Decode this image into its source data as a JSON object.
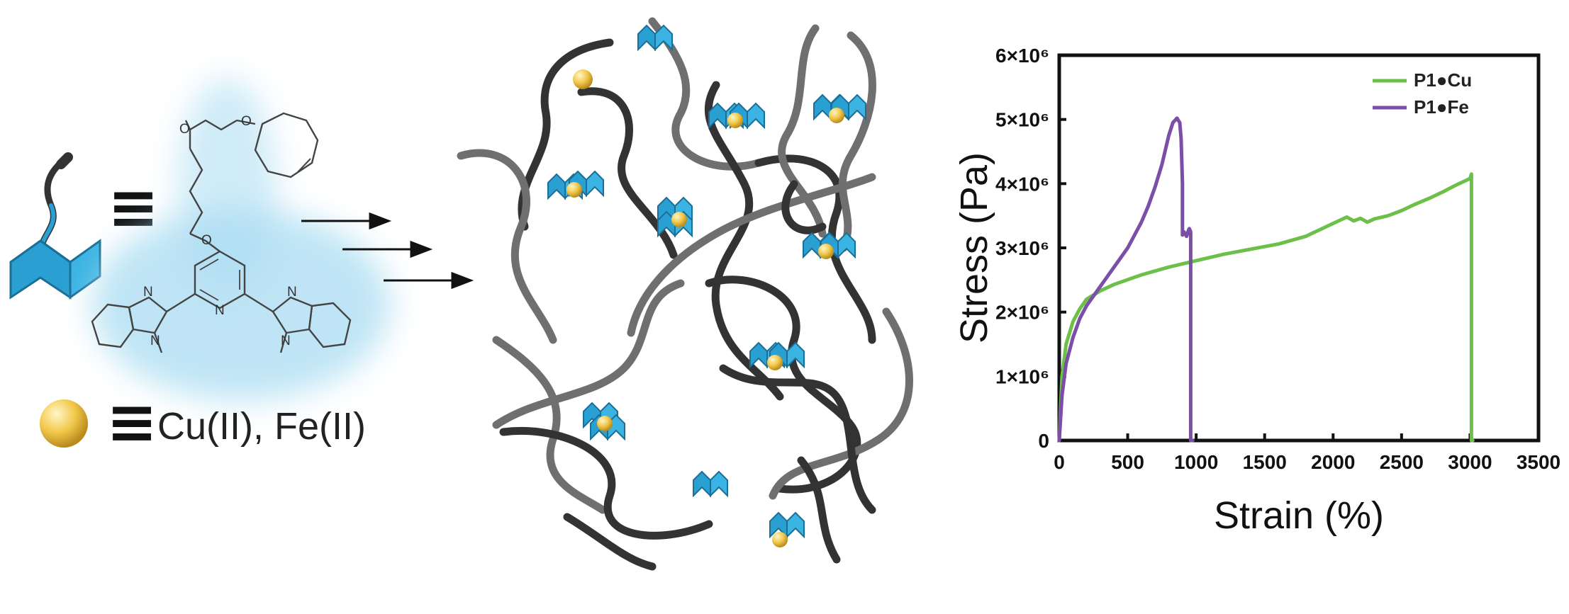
{
  "legend": {
    "equiv_symbol": "≡",
    "metal_ions": "Cu(II), Fe(II)"
  },
  "colors": {
    "ligand_blue": "#2a9fd1",
    "ligand_glow": "#a9dcf2",
    "metal_gold": "#f2c84b",
    "chain_dark": "#333333",
    "chain_light": "#7a7a7a",
    "cu_series": "#6cc04a",
    "fe_series": "#7b4fa8"
  },
  "molecule": {
    "atoms": [
      "O",
      "O",
      "O",
      "N",
      "N",
      "N",
      "N",
      "N"
    ]
  },
  "chart_data": {
    "type": "line",
    "xlabel": "Strain (%)",
    "ylabel": "Stress (Pa)",
    "xlim": [
      0,
      3500
    ],
    "ylim": [
      0,
      6000000
    ],
    "x_tick_labels": [
      "0",
      "500",
      "1000",
      "1500",
      "2000",
      "2500",
      "3000",
      "3500"
    ],
    "x_ticks": [
      0,
      500,
      1000,
      1500,
      2000,
      2500,
      3000,
      3500
    ],
    "y_tick_labels": [
      "0",
      "1×10⁶",
      "2×10⁶",
      "3×10⁶",
      "4×10⁶",
      "5×10⁶",
      "6×10⁶"
    ],
    "y_ticks": [
      0,
      1000000,
      2000000,
      3000000,
      4000000,
      5000000,
      6000000
    ],
    "legend_position": "top-right",
    "series": [
      {
        "name": "P1●Cu",
        "color": "#6cc04a",
        "x": [
          0,
          20,
          50,
          100,
          150,
          200,
          300,
          400,
          600,
          800,
          1000,
          1200,
          1400,
          1600,
          1800,
          1850,
          1900,
          2000,
          2100,
          2150,
          2200,
          2250,
          2300,
          2400,
          2500,
          2600,
          2700,
          2800,
          2900,
          3000,
          3010,
          3010,
          3020
        ],
        "y": [
          0,
          1000000,
          1500000,
          1850000,
          2050000,
          2200000,
          2330000,
          2430000,
          2580000,
          2700000,
          2800000,
          2900000,
          2980000,
          3060000,
          3180000,
          3230000,
          3280000,
          3380000,
          3480000,
          3420000,
          3460000,
          3400000,
          3450000,
          3500000,
          3580000,
          3680000,
          3770000,
          3870000,
          3980000,
          4080000,
          4150000,
          0,
          0
        ]
      },
      {
        "name": "P1●Fe",
        "color": "#7b4fa8",
        "x": [
          0,
          20,
          50,
          100,
          150,
          200,
          250,
          300,
          400,
          500,
          600,
          650,
          700,
          750,
          800,
          830,
          860,
          880,
          890,
          900,
          900,
          910,
          930,
          945,
          950,
          960,
          960,
          975
        ],
        "y": [
          0,
          700000,
          1200000,
          1600000,
          1900000,
          2100000,
          2250000,
          2400000,
          2700000,
          3000000,
          3400000,
          3650000,
          3950000,
          4300000,
          4750000,
          4950000,
          5020000,
          4950000,
          4700000,
          4000000,
          3200000,
          3250000,
          3180000,
          3280000,
          3300000,
          3250000,
          0,
          0
        ]
      }
    ]
  }
}
